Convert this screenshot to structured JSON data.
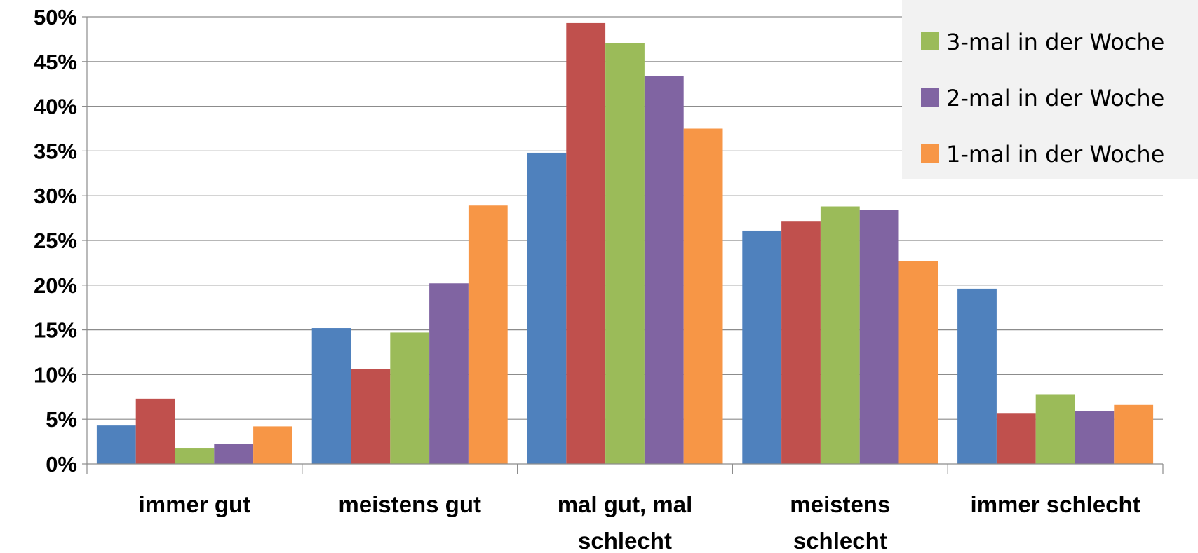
{
  "chart_data": {
    "type": "bar",
    "categories": [
      [
        "immer gut"
      ],
      [
        "meistens gut"
      ],
      [
        "mal gut, mal",
        "schlecht"
      ],
      [
        "meistens",
        "schlecht"
      ],
      [
        "immer schlecht"
      ]
    ],
    "series": [
      {
        "color": "#4F81BD",
        "values": [
          4.3,
          15.2,
          34.8,
          26.1,
          19.6
        ]
      },
      {
        "color": "#C0504D",
        "values": [
          7.3,
          10.6,
          49.3,
          27.1,
          5.7
        ]
      },
      {
        "name": "3-mal in der Woche",
        "color": "#9BBB59",
        "values": [
          1.8,
          14.7,
          47.1,
          28.8,
          7.8
        ]
      },
      {
        "name": "2-mal in der Woche",
        "color": "#8064A2",
        "values": [
          2.2,
          20.2,
          43.4,
          28.4,
          5.9
        ]
      },
      {
        "name": "1-mal in der Woche",
        "color": "#F79646",
        "values": [
          4.2,
          28.9,
          37.5,
          22.7,
          6.6
        ]
      }
    ],
    "y_ticks": [
      "0%",
      "5%",
      "10%",
      "15%",
      "20%",
      "25%",
      "30%",
      "35%",
      "40%",
      "45%",
      "50%"
    ],
    "ylim": [
      0,
      50
    ],
    "grid": true,
    "legend_position": "top-right"
  }
}
